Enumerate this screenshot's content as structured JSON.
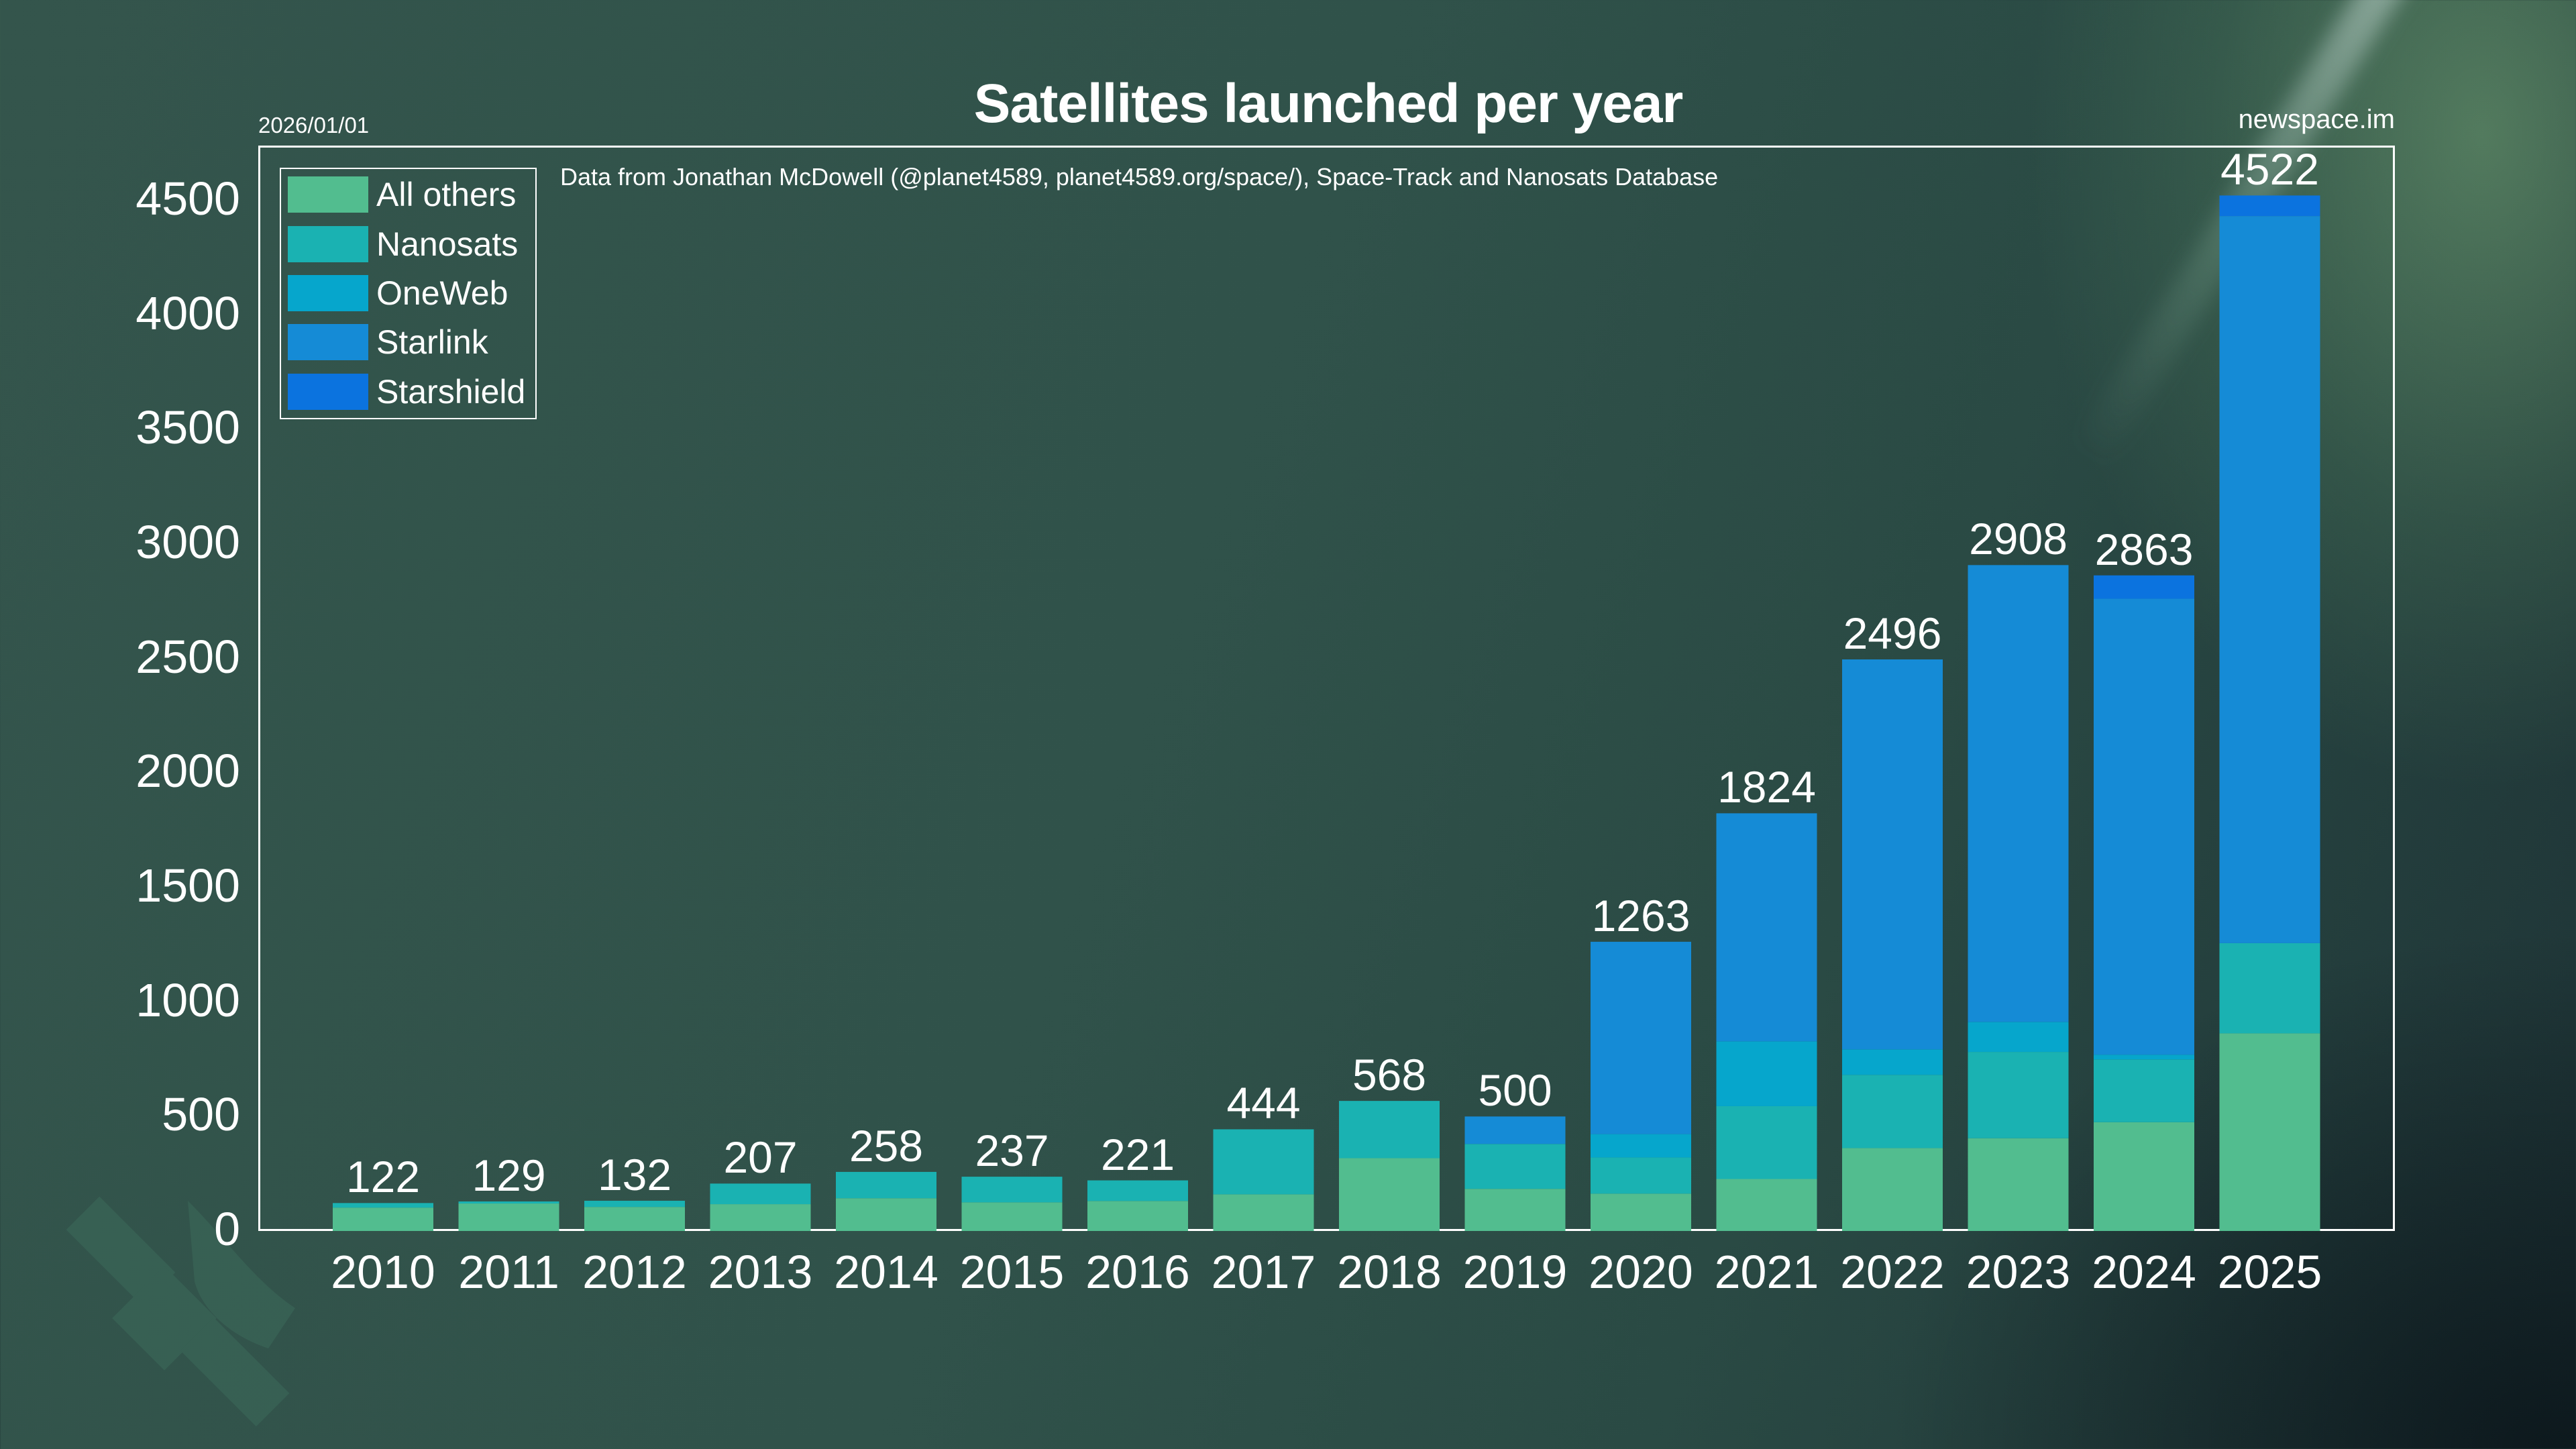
{
  "header": {
    "title": "Satellites launched per year",
    "date": "2026/01/01",
    "brand": "newspace.im",
    "source": "Data from Jonathan McDowell (@planet4589, planet4589.org/space/), Space-Track and Nanosats Database"
  },
  "chart_data": {
    "type": "bar",
    "stacked": true,
    "title": "Satellites launched per year",
    "xlabel": "",
    "ylabel": "",
    "ylim": [
      0,
      4740
    ],
    "yticks": [
      0,
      500,
      1000,
      1500,
      2000,
      2500,
      3000,
      3500,
      4000,
      4500
    ],
    "ytick_labels": [
      "0",
      "500",
      "1000",
      "1500",
      "2000",
      "2500",
      "3000",
      "3500",
      "4000",
      "4500"
    ],
    "grid": false,
    "legend_position": "top-left",
    "categories": [
      "2010",
      "2011",
      "2012",
      "2013",
      "2014",
      "2015",
      "2016",
      "2017",
      "2018",
      "2019",
      "2020",
      "2021",
      "2022",
      "2023",
      "2024",
      "2025"
    ],
    "totals": [
      122,
      129,
      132,
      207,
      258,
      237,
      221,
      444,
      568,
      500,
      1263,
      1824,
      2496,
      2908,
      2863,
      4522
    ],
    "series": [
      {
        "name": "All others",
        "color": "#52bd8f",
        "values": [
          102,
          120,
          105,
          117,
          143,
          125,
          131,
          160,
          318,
          184,
          163,
          227,
          362,
          405,
          475,
          863
        ]
      },
      {
        "name": "Nanosats",
        "color": "#1ab2b2",
        "values": [
          20,
          9,
          27,
          90,
          115,
          112,
          90,
          284,
          250,
          196,
          158,
          318,
          320,
          377,
          274,
          394
        ]
      },
      {
        "name": "OneWeb",
        "color": "#06a6cc",
        "values": [
          0,
          0,
          0,
          0,
          0,
          0,
          0,
          0,
          0,
          0,
          102,
          283,
          111,
          131,
          21,
          0
        ]
      },
      {
        "name": "Starlink",
        "color": "#158bd6",
        "values": [
          0,
          0,
          0,
          0,
          0,
          0,
          0,
          0,
          0,
          120,
          840,
          996,
          1703,
          1995,
          1991,
          3175
        ]
      },
      {
        "name": "Starshield",
        "color": "#0b73df",
        "values": [
          0,
          0,
          0,
          0,
          0,
          0,
          0,
          0,
          0,
          0,
          0,
          0,
          0,
          0,
          102,
          90
        ]
      }
    ]
  }
}
